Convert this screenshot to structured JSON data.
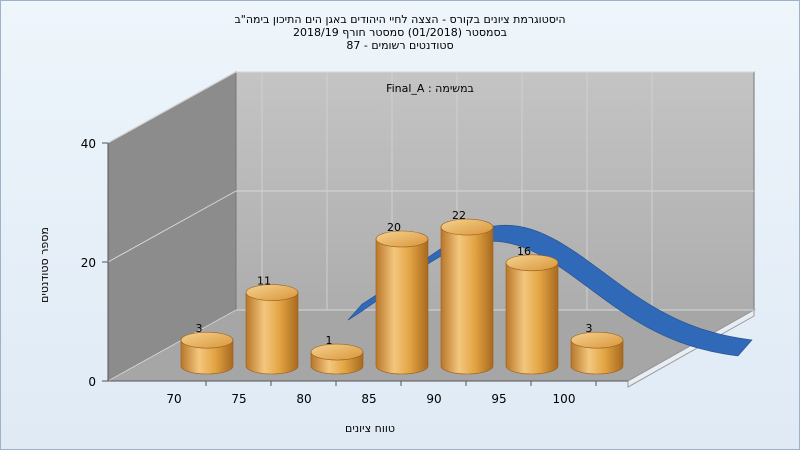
{
  "chart_data": {
    "type": "bar",
    "title_lines": [
      "היסטוגרמת ציונים בקורס - הצצה לחיי היהודים באגן הים התיכון בימה\"ב",
      "בסמסטר  (01/2018)  סמסטר חורף 2018/19",
      "סטודנטים רשומים - 87"
    ],
    "annotation": "Final_A : במשימה",
    "xlabel": "טווח ציונים",
    "ylabel": "מספר סטודנטים",
    "x_ticks": [
      "70",
      "75",
      "80",
      "85",
      "90",
      "95",
      "100"
    ],
    "y_ticks": [
      0,
      20,
      40
    ],
    "ylim": [
      0,
      40
    ],
    "categories": [
      "70",
      "75",
      "80",
      "85",
      "90",
      "95",
      "100"
    ],
    "values": [
      3,
      11,
      1,
      20,
      22,
      16,
      3
    ],
    "curve": "normal-distribution-ribbon",
    "grid": true,
    "colors": {
      "bar": "#e3a443",
      "curve": "#2f69b7",
      "back_wall": "#b7b7b7",
      "side_wall": "#8a8a8a",
      "floor": "#a9a9a9"
    }
  }
}
